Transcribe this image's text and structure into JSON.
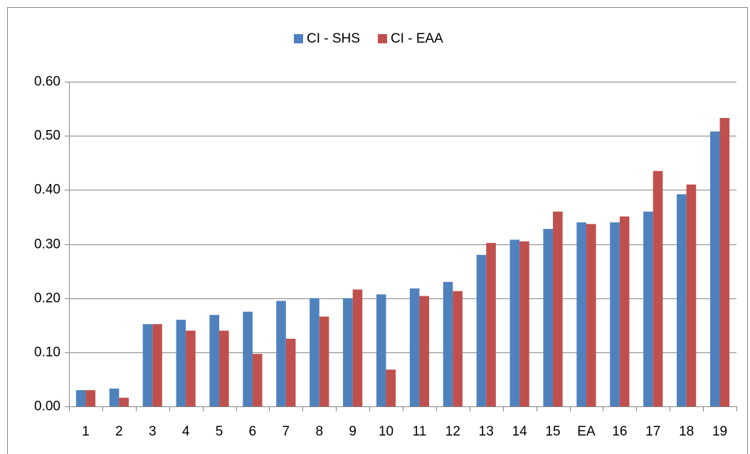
{
  "chart_data": {
    "type": "bar",
    "categories": [
      "1",
      "2",
      "3",
      "4",
      "5",
      "6",
      "7",
      "8",
      "9",
      "10",
      "11",
      "12",
      "13",
      "14",
      "15",
      "EA",
      "16",
      "17",
      "18",
      "19"
    ],
    "series": [
      {
        "name": "CI - SHS",
        "color": "#4f81bd",
        "values": [
          0.03,
          0.033,
          0.152,
          0.16,
          0.169,
          0.175,
          0.195,
          0.2,
          0.2,
          0.207,
          0.218,
          0.23,
          0.28,
          0.308,
          0.328,
          0.34,
          0.34,
          0.36,
          0.392,
          0.508
        ]
      },
      {
        "name": "CI - EAA",
        "color": "#c0504d",
        "values": [
          0.03,
          0.016,
          0.152,
          0.14,
          0.14,
          0.097,
          0.125,
          0.166,
          0.216,
          0.068,
          0.204,
          0.213,
          0.302,
          0.305,
          0.36,
          0.337,
          0.351,
          0.435,
          0.41,
          0.533
        ]
      }
    ],
    "ylim": [
      0,
      0.6
    ],
    "yticks": [
      {
        "value": 0,
        "label": "0.00"
      },
      {
        "value": 0.1,
        "label": "0.10"
      },
      {
        "value": 0.2,
        "label": "0.20"
      },
      {
        "value": 0.3,
        "label": "0.30"
      },
      {
        "value": 0.4,
        "label": "0.40"
      },
      {
        "value": 0.5,
        "label": "0.50"
      },
      {
        "value": 0.6,
        "label": "0.60"
      }
    ],
    "grid": true,
    "legend": "top"
  }
}
